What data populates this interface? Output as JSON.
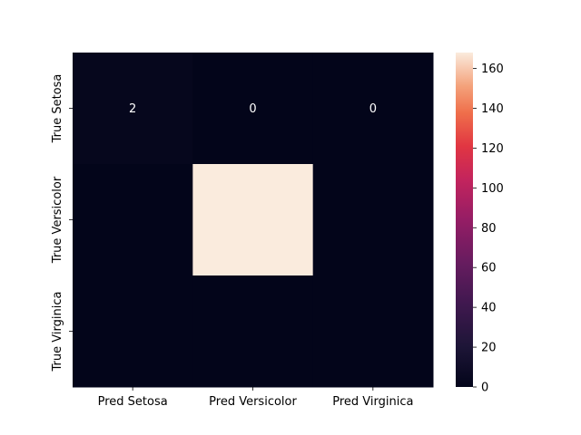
{
  "chart_data": {
    "type": "heatmap",
    "x_categories": [
      "Pred Setosa",
      "Pred Versicolor",
      "Pred Virginica"
    ],
    "y_categories": [
      "True Setosa",
      "True Versicolor",
      "True Virginica"
    ],
    "values": [
      [
        2,
        0,
        0
      ],
      [
        0,
        168,
        0
      ],
      [
        0,
        0,
        0
      ]
    ],
    "annotations": [
      [
        "2",
        "0",
        "0"
      ],
      [
        "",
        "",
        ""
      ],
      [
        "",
        "",
        ""
      ]
    ],
    "colorbar": {
      "min": 0,
      "max": 168,
      "ticks": [
        0,
        20,
        40,
        60,
        80,
        100,
        120,
        140,
        160
      ],
      "colormap": "rocket"
    },
    "grid": false
  }
}
